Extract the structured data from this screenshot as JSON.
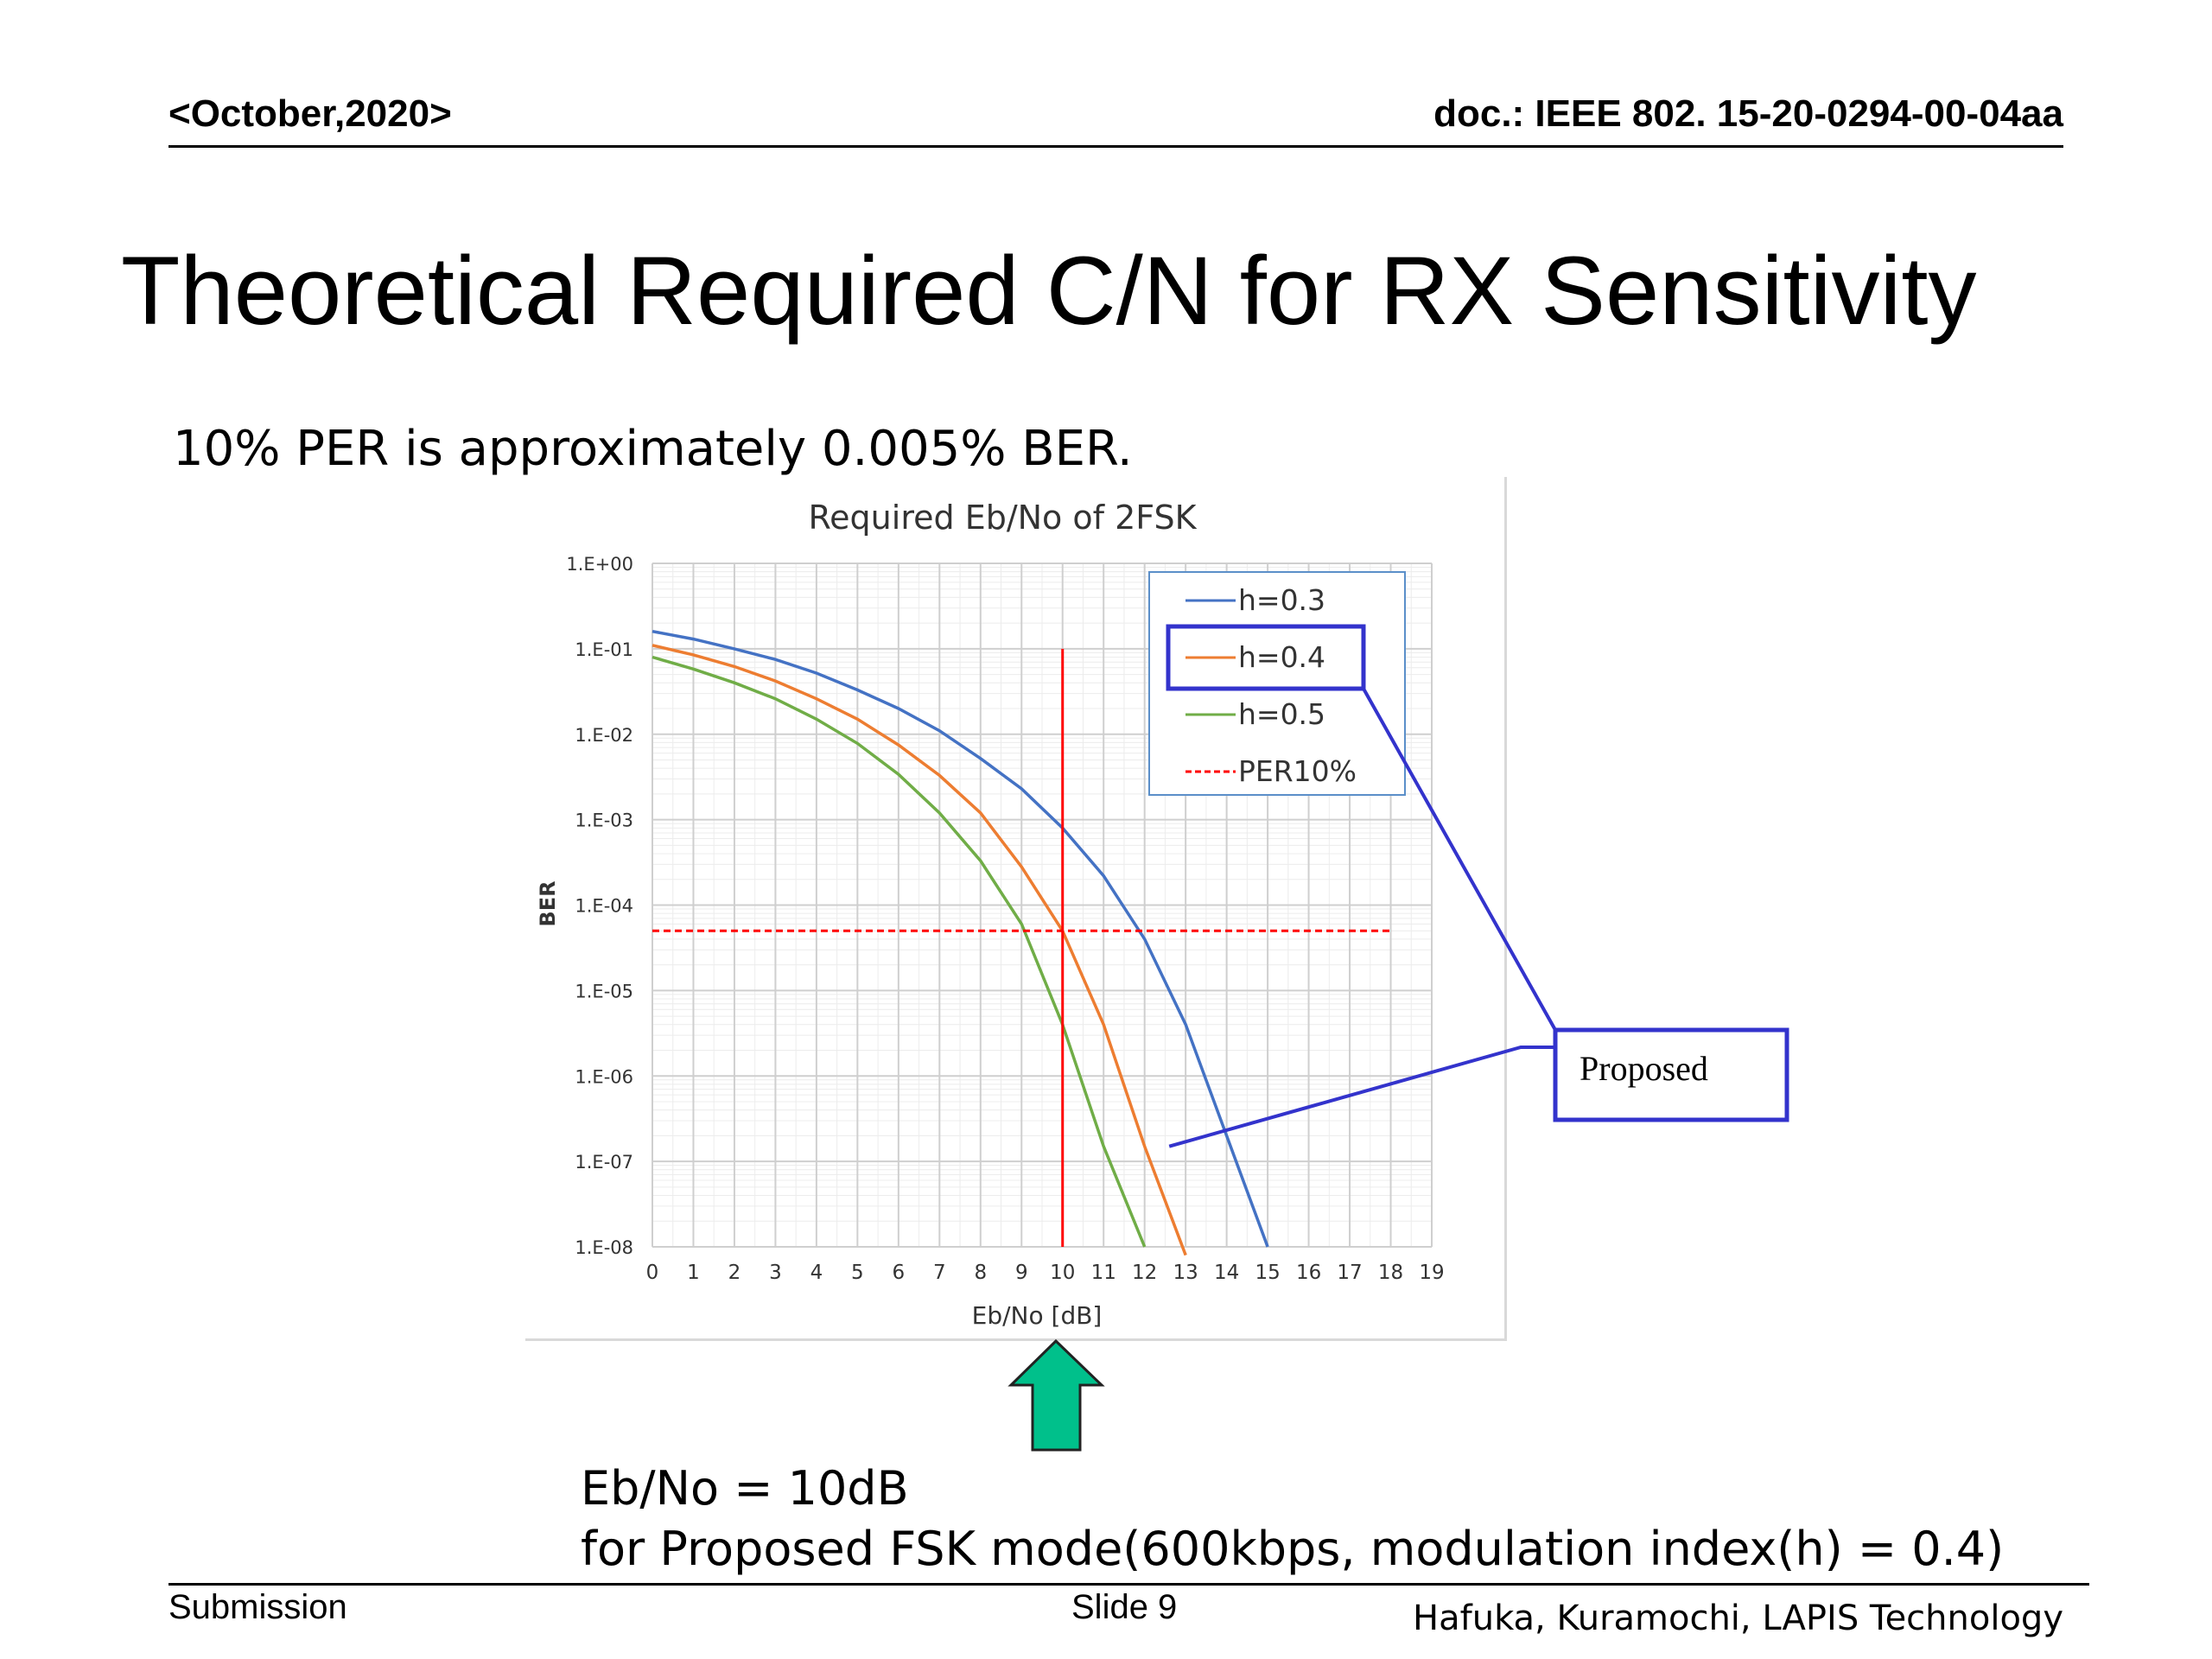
{
  "header": {
    "date": "<October,2020>",
    "doc": "doc.: IEEE 802. 15-20-0294-00-04aa"
  },
  "title": "Theoretical Required C/N for RX Sensitivity",
  "subtitle": "10% PER is approximately 0.005% BER.",
  "chart_data": {
    "type": "line",
    "title": "Required Eb/No of 2FSK",
    "xlabel": "Eb/No [dB]",
    "ylabel": "BER",
    "x_scale": "linear",
    "y_scale": "log",
    "xlim": [
      0,
      19
    ],
    "ylim": [
      1e-08,
      1
    ],
    "x_ticks": [
      "0",
      "1",
      "2",
      "3",
      "4",
      "5",
      "6",
      "7",
      "8",
      "9",
      "10",
      "11",
      "12",
      "13",
      "14",
      "15",
      "16",
      "17",
      "18",
      "19"
    ],
    "y_ticks": [
      "1.E+00",
      "1.E-01",
      "1.E-02",
      "1.E-03",
      "1.E-04",
      "1.E-05",
      "1.E-06",
      "1.E-07",
      "1.E-08"
    ],
    "grid": true,
    "legend_position": "top-right",
    "series": [
      {
        "name": "h=0.3",
        "color": "#4472c4",
        "x": [
          0,
          1,
          2,
          3,
          4,
          5,
          6,
          7,
          8,
          9,
          10,
          11,
          12,
          13,
          14,
          15
        ],
        "y": [
          0.16,
          0.13,
          0.1,
          0.075,
          0.052,
          0.033,
          0.02,
          0.011,
          0.0052,
          0.0023,
          0.0008,
          0.00022,
          4e-05,
          4e-06,
          2e-07,
          1e-08
        ]
      },
      {
        "name": "h=0.4",
        "color": "#ed7d31",
        "x": [
          0,
          1,
          2,
          3,
          4,
          5,
          6,
          7,
          8,
          9,
          10,
          11,
          12,
          13
        ],
        "y": [
          0.11,
          0.085,
          0.062,
          0.042,
          0.026,
          0.015,
          0.0075,
          0.0033,
          0.0012,
          0.00028,
          5e-05,
          4e-06,
          1.5e-07,
          8e-09
        ]
      },
      {
        "name": "h=0.5",
        "color": "#70ad47",
        "x": [
          0,
          1,
          2,
          3,
          4,
          5,
          6,
          7,
          8,
          9,
          10,
          11,
          12
        ],
        "y": [
          0.08,
          0.058,
          0.04,
          0.026,
          0.015,
          0.0078,
          0.0034,
          0.0012,
          0.00033,
          6e-05,
          4e-06,
          1.5e-07,
          1e-08
        ]
      },
      {
        "name": "PER10%",
        "color": "#ff0000",
        "dashed": true,
        "x": [
          0,
          18
        ],
        "y": [
          5e-05,
          5e-05
        ]
      }
    ],
    "vertical_marker": {
      "x": 10,
      "y_top": 0.1,
      "color": "#ff0000"
    },
    "highlighted_series": "h=0.4",
    "callout": {
      "label": "Proposed",
      "color": "#3333cc"
    }
  },
  "note": {
    "line1": "Eb/No = 10dB",
    "line2": "for Proposed FSK mode(600kbps,  modulation index(h) = 0.4)"
  },
  "footer": {
    "left": "Submission",
    "center": "Slide 9",
    "right": "Hafuka, Kuramochi, LAPIS Technology"
  },
  "arrow": {
    "color": "#00c08b",
    "stroke": "#222222"
  }
}
